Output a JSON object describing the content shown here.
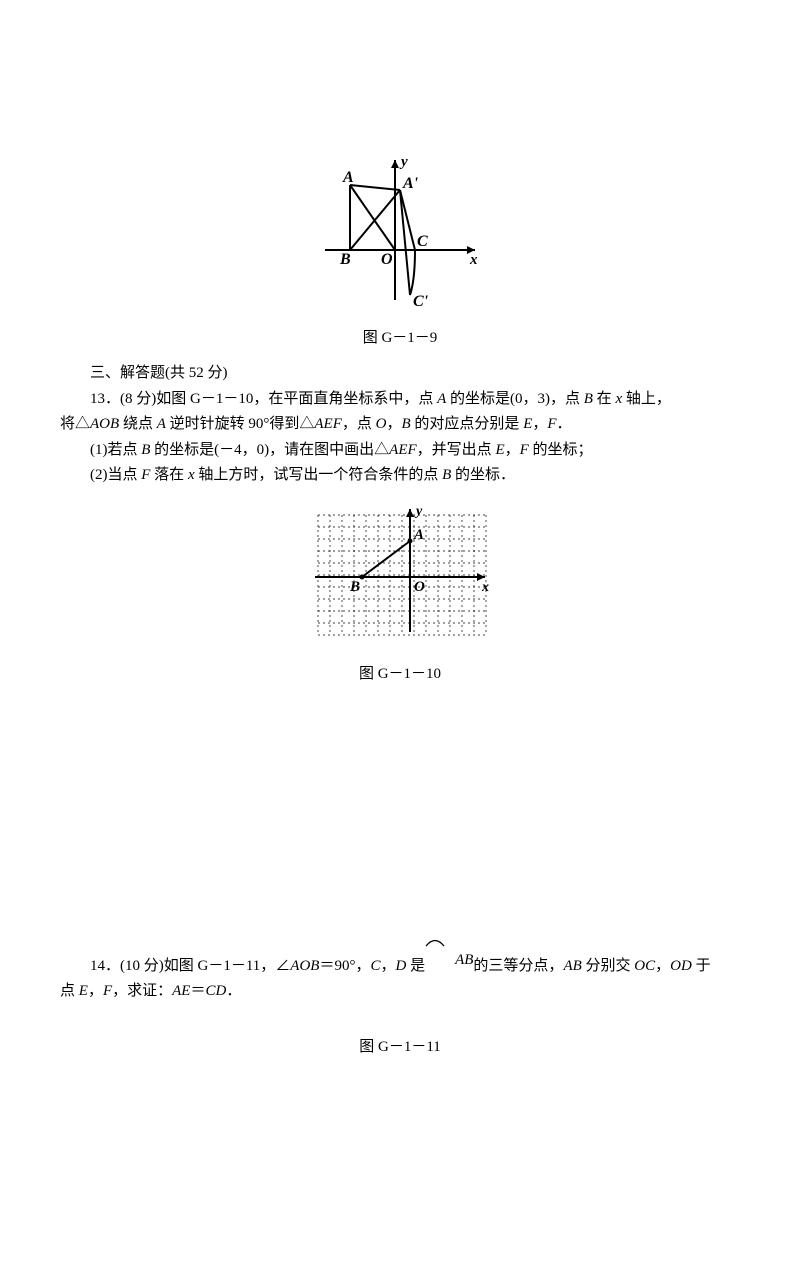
{
  "fig1": {
    "caption": "图 G－1－9",
    "labels": {
      "A": "A",
      "Ap": "A'",
      "B": "B",
      "O": "O",
      "C": "C",
      "Cp": "C'",
      "x": "x",
      "y": "y"
    },
    "colors": {
      "stroke": "#000000",
      "bg": "#ffffff"
    }
  },
  "section_header": "三、解答题(共 52 分)",
  "q13": {
    "line1_a": "13．(8 分)如图 G－1－10，在平面直角坐标系中，点 ",
    "line1_i1": "A",
    "line1_b": " 的坐标是(0，3)，点 ",
    "line1_i2": "B",
    "line1_c": " 在 ",
    "line1_i3": "x",
    "line1_d": " 轴上，",
    "line2_a": "将△",
    "line2_i1": "AOB",
    "line2_b": " 绕点 ",
    "line2_i2": "A",
    "line2_c": " 逆时针旋转 90°得到△",
    "line2_i3": "AEF",
    "line2_d": "，点 ",
    "line2_i4": "O",
    "line2_e": "，",
    "line2_i5": "B",
    "line2_f": " 的对应点分别是 ",
    "line2_i6": "E",
    "line2_g": "，",
    "line2_i7": "F",
    "line2_h": "．",
    "sub1_a": "(1)若点 ",
    "sub1_i1": "B",
    "sub1_b": " 的坐标是(－4，0)，请在图中画出△",
    "sub1_i2": "AEF",
    "sub1_c": "，并写出点 ",
    "sub1_i3": "E",
    "sub1_d": "，",
    "sub1_i4": "F",
    "sub1_e": " 的坐标；",
    "sub2_a": "(2)当点 ",
    "sub2_i1": "F",
    "sub2_b": " 落在 ",
    "sub2_i2": "x",
    "sub2_c": " 轴上方时，试写出一个符合条件的点 ",
    "sub2_i3": "B",
    "sub2_d": " 的坐标．"
  },
  "fig2": {
    "caption": "图 G－1－10",
    "labels": {
      "A": "A",
      "B": "B",
      "O": "O",
      "x": "x",
      "y": "y"
    },
    "grid": {
      "cols": 14,
      "rows": 10,
      "cell": 12
    },
    "colors": {
      "stroke": "#000000",
      "dash": "#888888"
    }
  },
  "q14": {
    "line1_a": "14．(10 分)如图 G－1－11，∠",
    "line1_i1": "AOB",
    "line1_b": "＝90°，",
    "line1_i2": "C",
    "line1_c": "，",
    "line1_i3": "D",
    "line1_d": " 是",
    "arc": "AB",
    "line1_e": "的三等分点，",
    "line1_i4": "AB",
    "line1_f": " 分别交 ",
    "line1_i5": "OC",
    "line1_g": "，",
    "line1_i6": "OD",
    "line1_h": " 于",
    "line2_a": "点 ",
    "line2_i1": "E",
    "line2_b": "，",
    "line2_i2": "F",
    "line2_c": "，求证：",
    "line2_i3": "AE",
    "line2_d": "＝",
    "line2_i4": "CD",
    "line2_e": "．"
  },
  "fig3_caption": "图 G－1－11"
}
